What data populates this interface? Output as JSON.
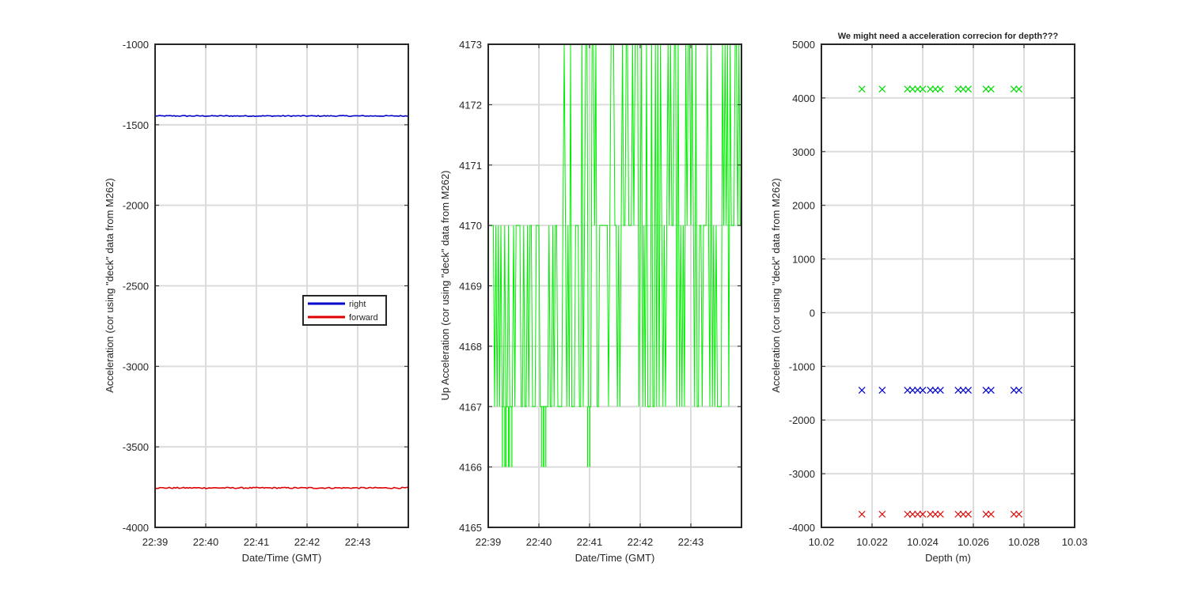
{
  "chart_data": [
    {
      "type": "line",
      "title": "",
      "xlabel": "Date/Time (GMT)",
      "ylabel": "Acceleration (cor using \"deck\" data from M262)",
      "xticks": [
        "22:39",
        "22:40",
        "22:41",
        "22:42",
        "22:43"
      ],
      "xlim": [
        0,
        5
      ],
      "ylim": [
        -4000,
        -1000
      ],
      "yticks": [
        -4000,
        -3500,
        -3000,
        -2500,
        -2000,
        -1500,
        -1000
      ],
      "grid": true,
      "legend": "right",
      "series": [
        {
          "name": "right",
          "color": "#0000cc",
          "y_mean": -1445,
          "noise": 3
        },
        {
          "name": "forward",
          "color": "#dd0000",
          "y_mean": -3755,
          "noise": 4
        }
      ]
    },
    {
      "type": "line",
      "title": "",
      "xlabel": "Date/Time (GMT)",
      "ylabel": "Up Acceleration (cor using \"deck\" data from M262)",
      "xticks": [
        "22:39",
        "22:40",
        "22:41",
        "22:42",
        "22:43"
      ],
      "xlim": [
        0,
        5
      ],
      "ylim": [
        4165,
        4173
      ],
      "yticks": [
        4165,
        4166,
        4167,
        4168,
        4169,
        4170,
        4171,
        4172,
        4173
      ],
      "grid": true,
      "series": [
        {
          "color": "#00ee00",
          "dense_band": [
            {
              "x": [
                0,
                1.4
              ],
              "band": [
                4167,
                4170
              ]
            },
            {
              "x": [
                1.4,
                4.8
              ],
              "band": [
                4167,
                4173
              ]
            },
            {
              "x": [
                4.8,
                5.0
              ],
              "band": [
                4170,
                4173
              ]
            }
          ],
          "dips_to": [
            {
              "x": 0.28,
              "y": 4166
            },
            {
              "x": 0.35,
              "y": 4166
            },
            {
              "x": 0.42,
              "y": 4166
            },
            {
              "x": 1.05,
              "y": 4166
            },
            {
              "x": 1.09,
              "y": 4166
            },
            {
              "x": 1.96,
              "y": 4166
            }
          ]
        }
      ]
    },
    {
      "type": "scatter",
      "title": "We might need a acceleration correcion for depth???",
      "xlabel": "Depth (m)",
      "ylabel": "Acceleration (cor using \"deck\" data from M262)",
      "xlim": [
        10.02,
        10.03
      ],
      "ylim": [
        -4000,
        5000
      ],
      "xticks": [
        10.02,
        10.022,
        10.024,
        10.026,
        10.028,
        10.03
      ],
      "yticks": [
        -4000,
        -3000,
        -2000,
        -1000,
        0,
        1000,
        2000,
        3000,
        4000,
        5000
      ],
      "marker": "x",
      "grid": true,
      "x": [
        10.0216,
        10.0224,
        10.0234,
        10.0236,
        10.0238,
        10.024,
        10.0243,
        10.0245,
        10.0247,
        10.0254,
        10.0256,
        10.0258,
        10.0265,
        10.0267,
        10.0276,
        10.0278
      ],
      "series": [
        {
          "color": "#00dd00",
          "y": 4165
        },
        {
          "color": "#0000cc",
          "y": -1445
        },
        {
          "color": "#dd0000",
          "y": -3755
        }
      ]
    }
  ]
}
